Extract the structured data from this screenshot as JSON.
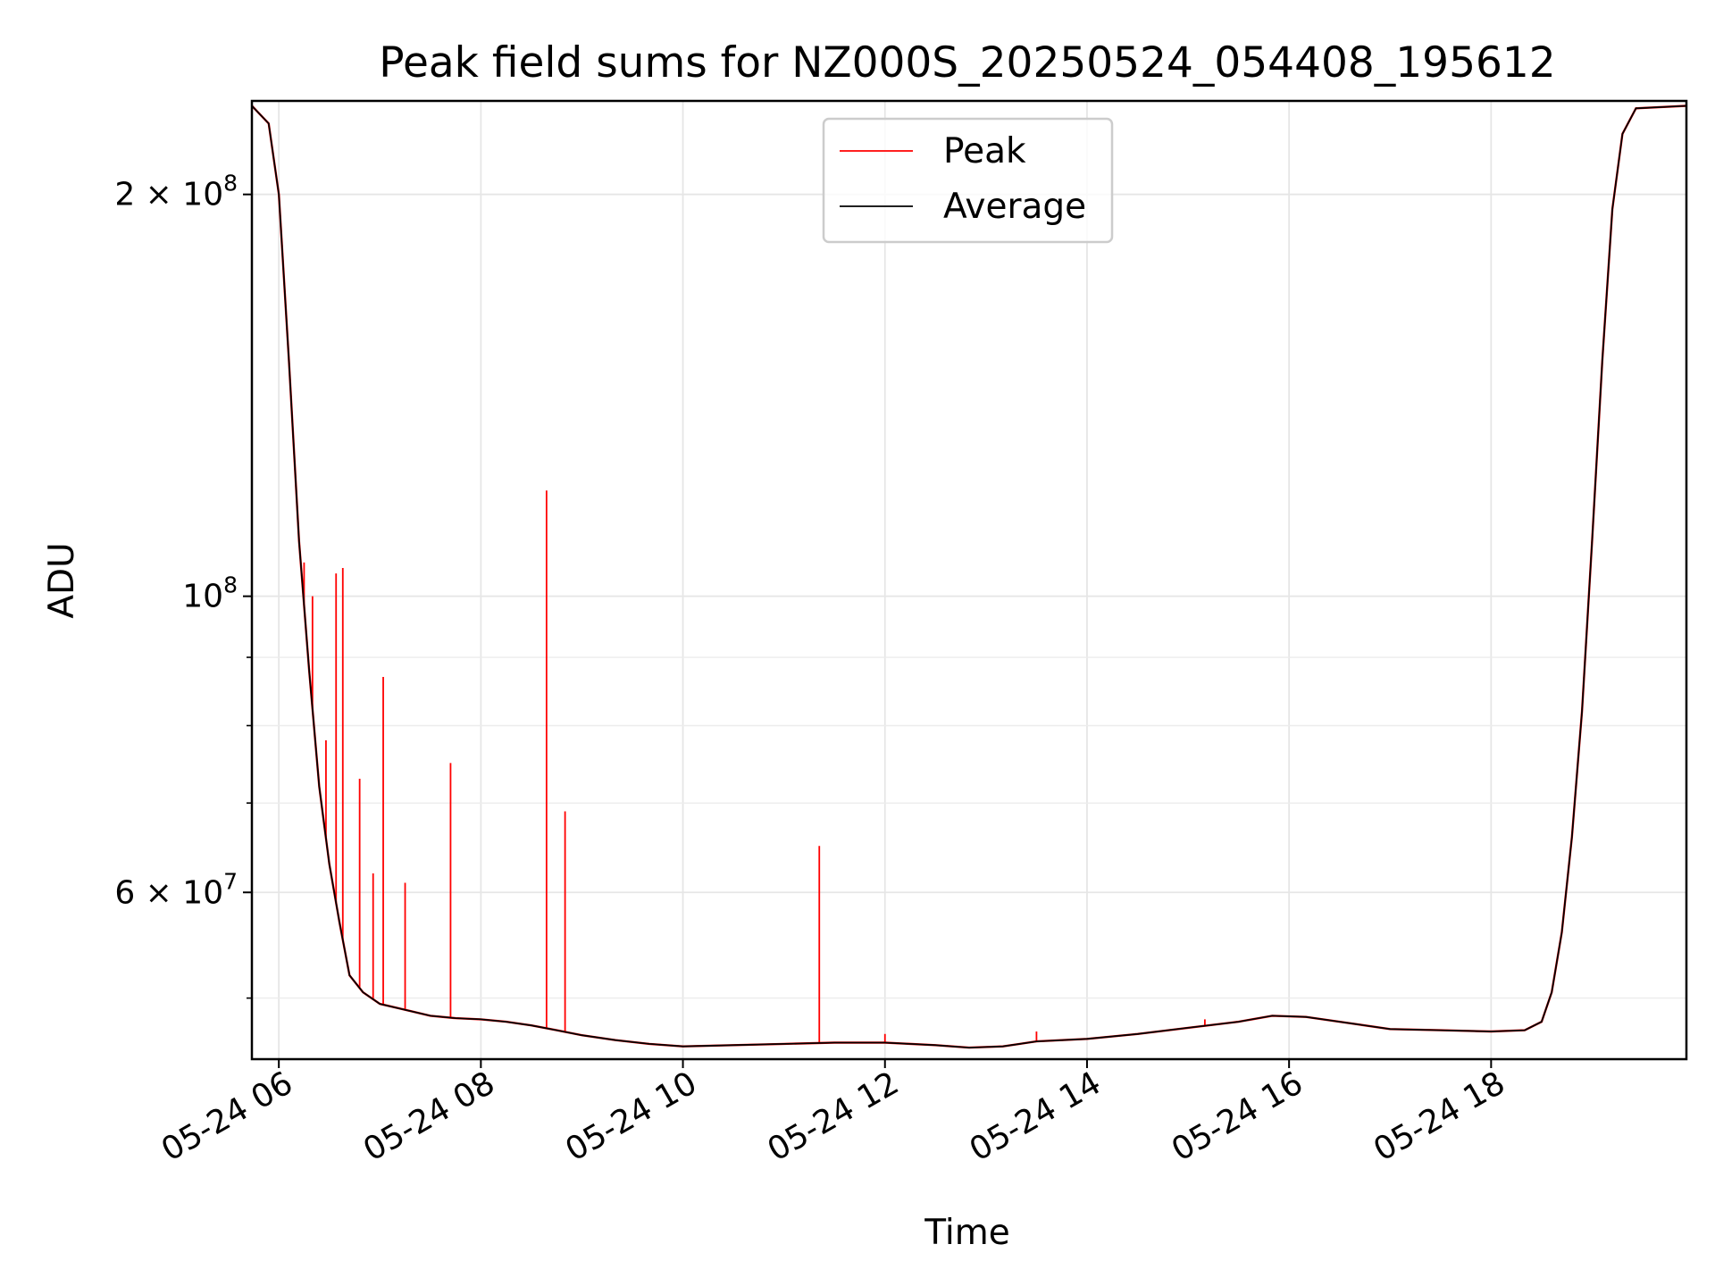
{
  "chart_data": {
    "type": "line",
    "title": "Peak field sums for NZ000S_20250524_054408_195612",
    "xlabel": "Time",
    "ylabel": "ADU",
    "y_scale": "log",
    "grid": true,
    "legend": {
      "placement": "upper-center",
      "entries": [
        {
          "name": "Peak",
          "color": "#ff0000"
        },
        {
          "name": "Average",
          "color": "#000000"
        }
      ]
    },
    "xlim": [
      "2025-05-24T05:44",
      "2025-05-24T19:56"
    ],
    "ylim": [
      45000000,
      235000000
    ],
    "x_ticks": [
      {
        "value": "2025-05-24T06:00",
        "label": "05-24 06"
      },
      {
        "value": "2025-05-24T08:00",
        "label": "05-24 08"
      },
      {
        "value": "2025-05-24T10:00",
        "label": "05-24 10"
      },
      {
        "value": "2025-05-24T12:00",
        "label": "05-24 12"
      },
      {
        "value": "2025-05-24T14:00",
        "label": "05-24 14"
      },
      {
        "value": "2025-05-24T16:00",
        "label": "05-24 16"
      },
      {
        "value": "2025-05-24T18:00",
        "label": "05-24 18"
      }
    ],
    "y_ticks": [
      {
        "value": 60000000,
        "mantissa": "6",
        "exp": "7"
      },
      {
        "value": 100000000,
        "mantissa": "",
        "exp": "8"
      },
      {
        "value": 200000000,
        "mantissa": "2",
        "exp": "8"
      }
    ],
    "y_minor_ticks": [
      50000000,
      70000000,
      80000000,
      90000000
    ],
    "series": [
      {
        "name": "Average",
        "color": "#000000",
        "points": [
          [
            "2025-05-24T05:44",
            233000000
          ],
          [
            "2025-05-24T05:54",
            226000000
          ],
          [
            "2025-05-24T06:00",
            200000000
          ],
          [
            "2025-05-24T06:06",
            150000000
          ],
          [
            "2025-05-24T06:12",
            110000000
          ],
          [
            "2025-05-24T06:18",
            88000000
          ],
          [
            "2025-05-24T06:24",
            72000000
          ],
          [
            "2025-05-24T06:30",
            63000000
          ],
          [
            "2025-05-24T06:36",
            57000000
          ],
          [
            "2025-05-24T06:42",
            52000000
          ],
          [
            "2025-05-24T06:50",
            50500000
          ],
          [
            "2025-05-24T07:00",
            49500000
          ],
          [
            "2025-05-24T07:15",
            49000000
          ],
          [
            "2025-05-24T07:30",
            48500000
          ],
          [
            "2025-05-24T07:45",
            48300000
          ],
          [
            "2025-05-24T08:00",
            48200000
          ],
          [
            "2025-05-24T08:15",
            48000000
          ],
          [
            "2025-05-24T08:30",
            47700000
          ],
          [
            "2025-05-24T08:45",
            47300000
          ],
          [
            "2025-05-24T09:00",
            46900000
          ],
          [
            "2025-05-24T09:20",
            46500000
          ],
          [
            "2025-05-24T09:40",
            46200000
          ],
          [
            "2025-05-24T10:00",
            46000000
          ],
          [
            "2025-05-24T10:30",
            46100000
          ],
          [
            "2025-05-24T11:00",
            46200000
          ],
          [
            "2025-05-24T11:30",
            46300000
          ],
          [
            "2025-05-24T12:00",
            46300000
          ],
          [
            "2025-05-24T12:30",
            46100000
          ],
          [
            "2025-05-24T12:50",
            45900000
          ],
          [
            "2025-05-24T13:10",
            46000000
          ],
          [
            "2025-05-24T13:30",
            46400000
          ],
          [
            "2025-05-24T14:00",
            46600000
          ],
          [
            "2025-05-24T14:30",
            47000000
          ],
          [
            "2025-05-24T15:00",
            47500000
          ],
          [
            "2025-05-24T15:30",
            48000000
          ],
          [
            "2025-05-24T15:50",
            48500000
          ],
          [
            "2025-05-24T16:10",
            48400000
          ],
          [
            "2025-05-24T16:40",
            47800000
          ],
          [
            "2025-05-24T17:00",
            47400000
          ],
          [
            "2025-05-24T17:30",
            47300000
          ],
          [
            "2025-05-24T18:00",
            47200000
          ],
          [
            "2025-05-24T18:20",
            47300000
          ],
          [
            "2025-05-24T18:30",
            48000000
          ],
          [
            "2025-05-24T18:36",
            50500000
          ],
          [
            "2025-05-24T18:42",
            56000000
          ],
          [
            "2025-05-24T18:48",
            66000000
          ],
          [
            "2025-05-24T18:54",
            82000000
          ],
          [
            "2025-05-24T19:00",
            110000000
          ],
          [
            "2025-05-24T19:06",
            150000000
          ],
          [
            "2025-05-24T19:12",
            195000000
          ],
          [
            "2025-05-24T19:18",
            222000000
          ],
          [
            "2025-05-24T19:26",
            232000000
          ],
          [
            "2025-05-24T19:56",
            233000000
          ]
        ]
      },
      {
        "name": "Peak",
        "color": "#ff0000",
        "spikes": [
          [
            "2025-05-24T06:15",
            106000000
          ],
          [
            "2025-05-24T06:20",
            100000000
          ],
          [
            "2025-05-24T06:28",
            78000000
          ],
          [
            "2025-05-24T06:34",
            104000000
          ],
          [
            "2025-05-24T06:38",
            105000000
          ],
          [
            "2025-05-24T06:48",
            73000000
          ],
          [
            "2025-05-24T06:56",
            62000000
          ],
          [
            "2025-05-24T07:02",
            87000000
          ],
          [
            "2025-05-24T07:15",
            61000000
          ],
          [
            "2025-05-24T07:42",
            75000000
          ],
          [
            "2025-05-24T08:39",
            120000000
          ],
          [
            "2025-05-24T08:50",
            69000000
          ],
          [
            "2025-05-24T11:21",
            65000000
          ],
          [
            "2025-05-24T12:00",
            47000000
          ],
          [
            "2025-05-24T13:30",
            47200000
          ],
          [
            "2025-05-24T15:10",
            48200000
          ]
        ]
      }
    ]
  }
}
